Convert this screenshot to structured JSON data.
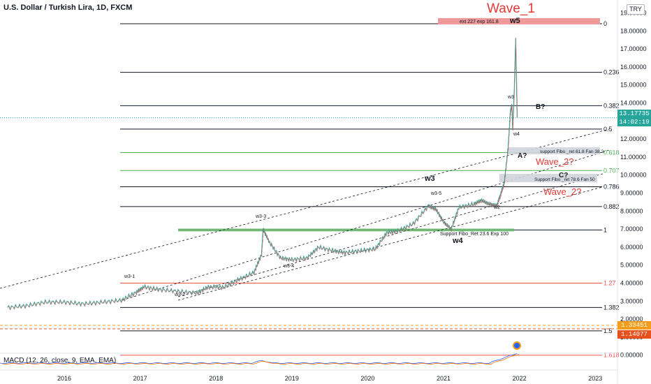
{
  "header": {
    "title": "U.S. Dollar / Turkish Lira, 1D, FXCM",
    "currency": "TRY"
  },
  "macd_label": "MACD (12, 26, close, 9, EMA, EMA)",
  "wave1_label": "Wave_1",
  "price_badges": {
    "last_price": "13.17735",
    "countdown": "14:02:19",
    "level_a": "1.33451",
    "level_b": "1.14077"
  },
  "chart_data": {
    "type": "line",
    "title": "U.S. Dollar / Turkish Lira, 1D, FXCM",
    "xlabel": "",
    "ylabel": "",
    "x_ticks": [
      "2016",
      "2017",
      "2018",
      "2019",
      "2020",
      "2021",
      "2022",
      "2023"
    ],
    "y_ticks": [
      "19.00000",
      "18.00000",
      "17.00000",
      "16.00000",
      "15.00000",
      "14.00000",
      "13.00000",
      "12.00000",
      "11.00000",
      "10.00000",
      "9.00000",
      "8.00000",
      "7.00000",
      "6.00000",
      "5.00000",
      "4.00000",
      "3.00000",
      "2.00000",
      "1.00000",
      "0.00000"
    ],
    "ylim": [
      0,
      19.5
    ],
    "series": [
      {
        "values": [
          [
            2015.25,
            2.65
          ],
          [
            2015.5,
            2.75
          ],
          [
            2015.75,
            2.95
          ],
          [
            2016.0,
            2.95
          ],
          [
            2016.25,
            2.85
          ],
          [
            2016.5,
            2.95
          ],
          [
            2016.75,
            3.05
          ],
          [
            2016.95,
            3.5
          ],
          [
            2017.05,
            3.8
          ],
          [
            2017.25,
            3.65
          ],
          [
            2017.5,
            3.55
          ],
          [
            2017.75,
            3.45
          ],
          [
            2017.9,
            3.8
          ],
          [
            2018.1,
            3.78
          ],
          [
            2018.3,
            4.2
          ],
          [
            2018.5,
            4.6
          ],
          [
            2018.6,
            5.6
          ],
          [
            2018.62,
            7.0
          ],
          [
            2018.7,
            6.3
          ],
          [
            2018.85,
            5.4
          ],
          [
            2019.0,
            5.3
          ],
          [
            2019.2,
            5.4
          ],
          [
            2019.35,
            6.0
          ],
          [
            2019.55,
            5.8
          ],
          [
            2019.7,
            5.7
          ],
          [
            2019.9,
            5.8
          ],
          [
            2020.1,
            5.9
          ],
          [
            2020.25,
            6.8
          ],
          [
            2020.4,
            6.9
          ],
          [
            2020.6,
            7.3
          ],
          [
            2020.8,
            8.3
          ],
          [
            2020.9,
            8.1
          ],
          [
            2021.0,
            7.4
          ],
          [
            2021.1,
            7.0
          ],
          [
            2021.2,
            8.2
          ],
          [
            2021.4,
            8.4
          ],
          [
            2021.5,
            8.6
          ],
          [
            2021.6,
            8.4
          ],
          [
            2021.7,
            8.3
          ],
          [
            2021.75,
            8.9
          ],
          [
            2021.8,
            9.6
          ],
          [
            2021.85,
            11.5
          ],
          [
            2021.88,
            13.5
          ],
          [
            2021.9,
            13.9
          ],
          [
            2021.91,
            12.5
          ],
          [
            2021.93,
            14.5
          ],
          [
            2021.95,
            17.5
          ],
          [
            2021.97,
            13.2
          ]
        ]
      }
    ],
    "fib_levels": [
      {
        "label": "0",
        "price": 18.4,
        "color": "#131722"
      },
      {
        "label": "0.236",
        "price": 15.7,
        "color": "#131722"
      },
      {
        "label": "0.382",
        "price": 13.85,
        "color": "#131722"
      },
      {
        "label": "0.5",
        "price": 12.55,
        "color": "#131722"
      },
      {
        "label": "0.618",
        "price": 11.25,
        "color": "#4caf50"
      },
      {
        "label": "0.707",
        "price": 10.25,
        "color": "#4caf50"
      },
      {
        "label": "0.786",
        "price": 9.35,
        "color": "#131722"
      },
      {
        "label": "0.882",
        "price": 8.25,
        "color": "#131722"
      },
      {
        "label": "1",
        "price": 6.95,
        "color": "#131722"
      },
      {
        "label": "1.27",
        "price": 4.0,
        "color": "#ef5350"
      },
      {
        "label": "1.382",
        "price": 2.65,
        "color": "#131722"
      },
      {
        "label": "1.5",
        "price": 1.35,
        "color": "#131722"
      },
      {
        "label": "1.618",
        "price": 0.0,
        "color": "#ef5350"
      }
    ],
    "annotations": {
      "ext_box": "ext 227 exp 161.8",
      "support_box_1": "support Fibo _ret 61.8 Fan 38.2",
      "support_box_2": "Support Fibo _ret 78.6 Fan 50",
      "support_low": "Support Fibo_Ret 23.6 Exp 100",
      "wave_labels": [
        "w5",
        "w3",
        "w4",
        "w3",
        "w3-3",
        "w3-1",
        "w3-2",
        "w3-4",
        "w3-5",
        "w2",
        "w4",
        "B?",
        "A?",
        "C?"
      ],
      "wave2_labels": [
        "Wave_2?",
        "Wave_2?"
      ]
    },
    "grid": false
  }
}
